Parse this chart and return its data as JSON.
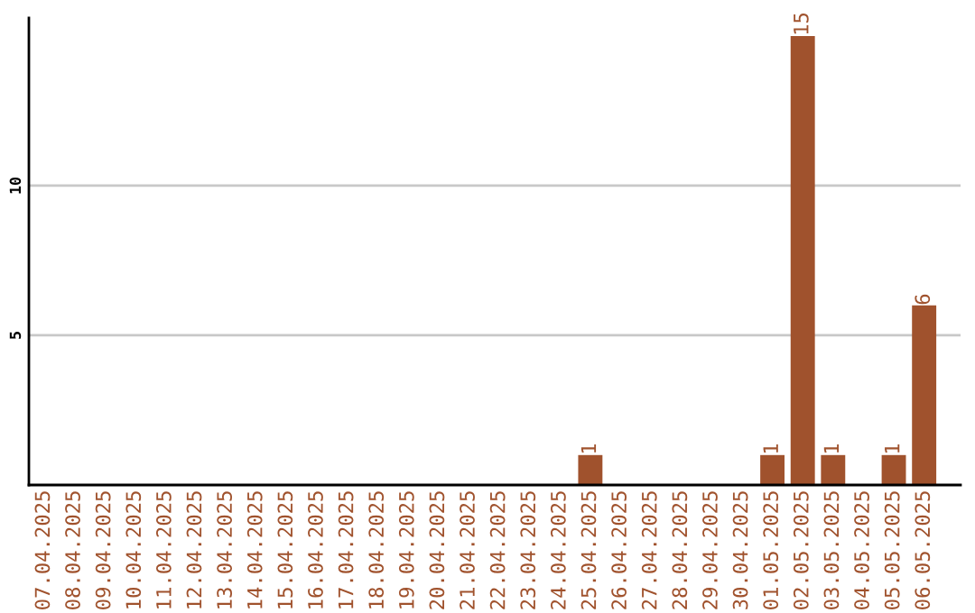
{
  "chart_data": {
    "type": "bar",
    "categories": [
      "07.04.2025",
      "08.04.2025",
      "09.04.2025",
      "10.04.2025",
      "11.04.2025",
      "12.04.2025",
      "13.04.2025",
      "14.04.2025",
      "15.04.2025",
      "16.04.2025",
      "17.04.2025",
      "18.04.2025",
      "19.04.2025",
      "20.04.2025",
      "21.04.2025",
      "22.04.2025",
      "23.04.2025",
      "24.04.2025",
      "25.04.2025",
      "26.04.2025",
      "27.04.2025",
      "28.04.2025",
      "29.04.2025",
      "30.04.2025",
      "01.05.2025",
      "02.05.2025",
      "03.05.2025",
      "04.05.2025",
      "05.05.2025",
      "06.05.2025"
    ],
    "values": [
      0,
      0,
      0,
      0,
      0,
      0,
      0,
      0,
      0,
      0,
      0,
      0,
      0,
      0,
      0,
      0,
      0,
      0,
      1,
      0,
      0,
      0,
      0,
      0,
      1,
      15,
      1,
      0,
      1,
      6
    ],
    "value_labels": [
      null,
      null,
      null,
      null,
      null,
      null,
      null,
      null,
      null,
      null,
      null,
      null,
      null,
      null,
      null,
      null,
      null,
      null,
      "1",
      null,
      null,
      null,
      null,
      null,
      "1",
      "15",
      "1",
      null,
      "1",
      "6"
    ],
    "color": "#a0522d",
    "ylim": [
      0,
      15.6
    ],
    "yticks": [
      5,
      10
    ],
    "grid": "y"
  }
}
